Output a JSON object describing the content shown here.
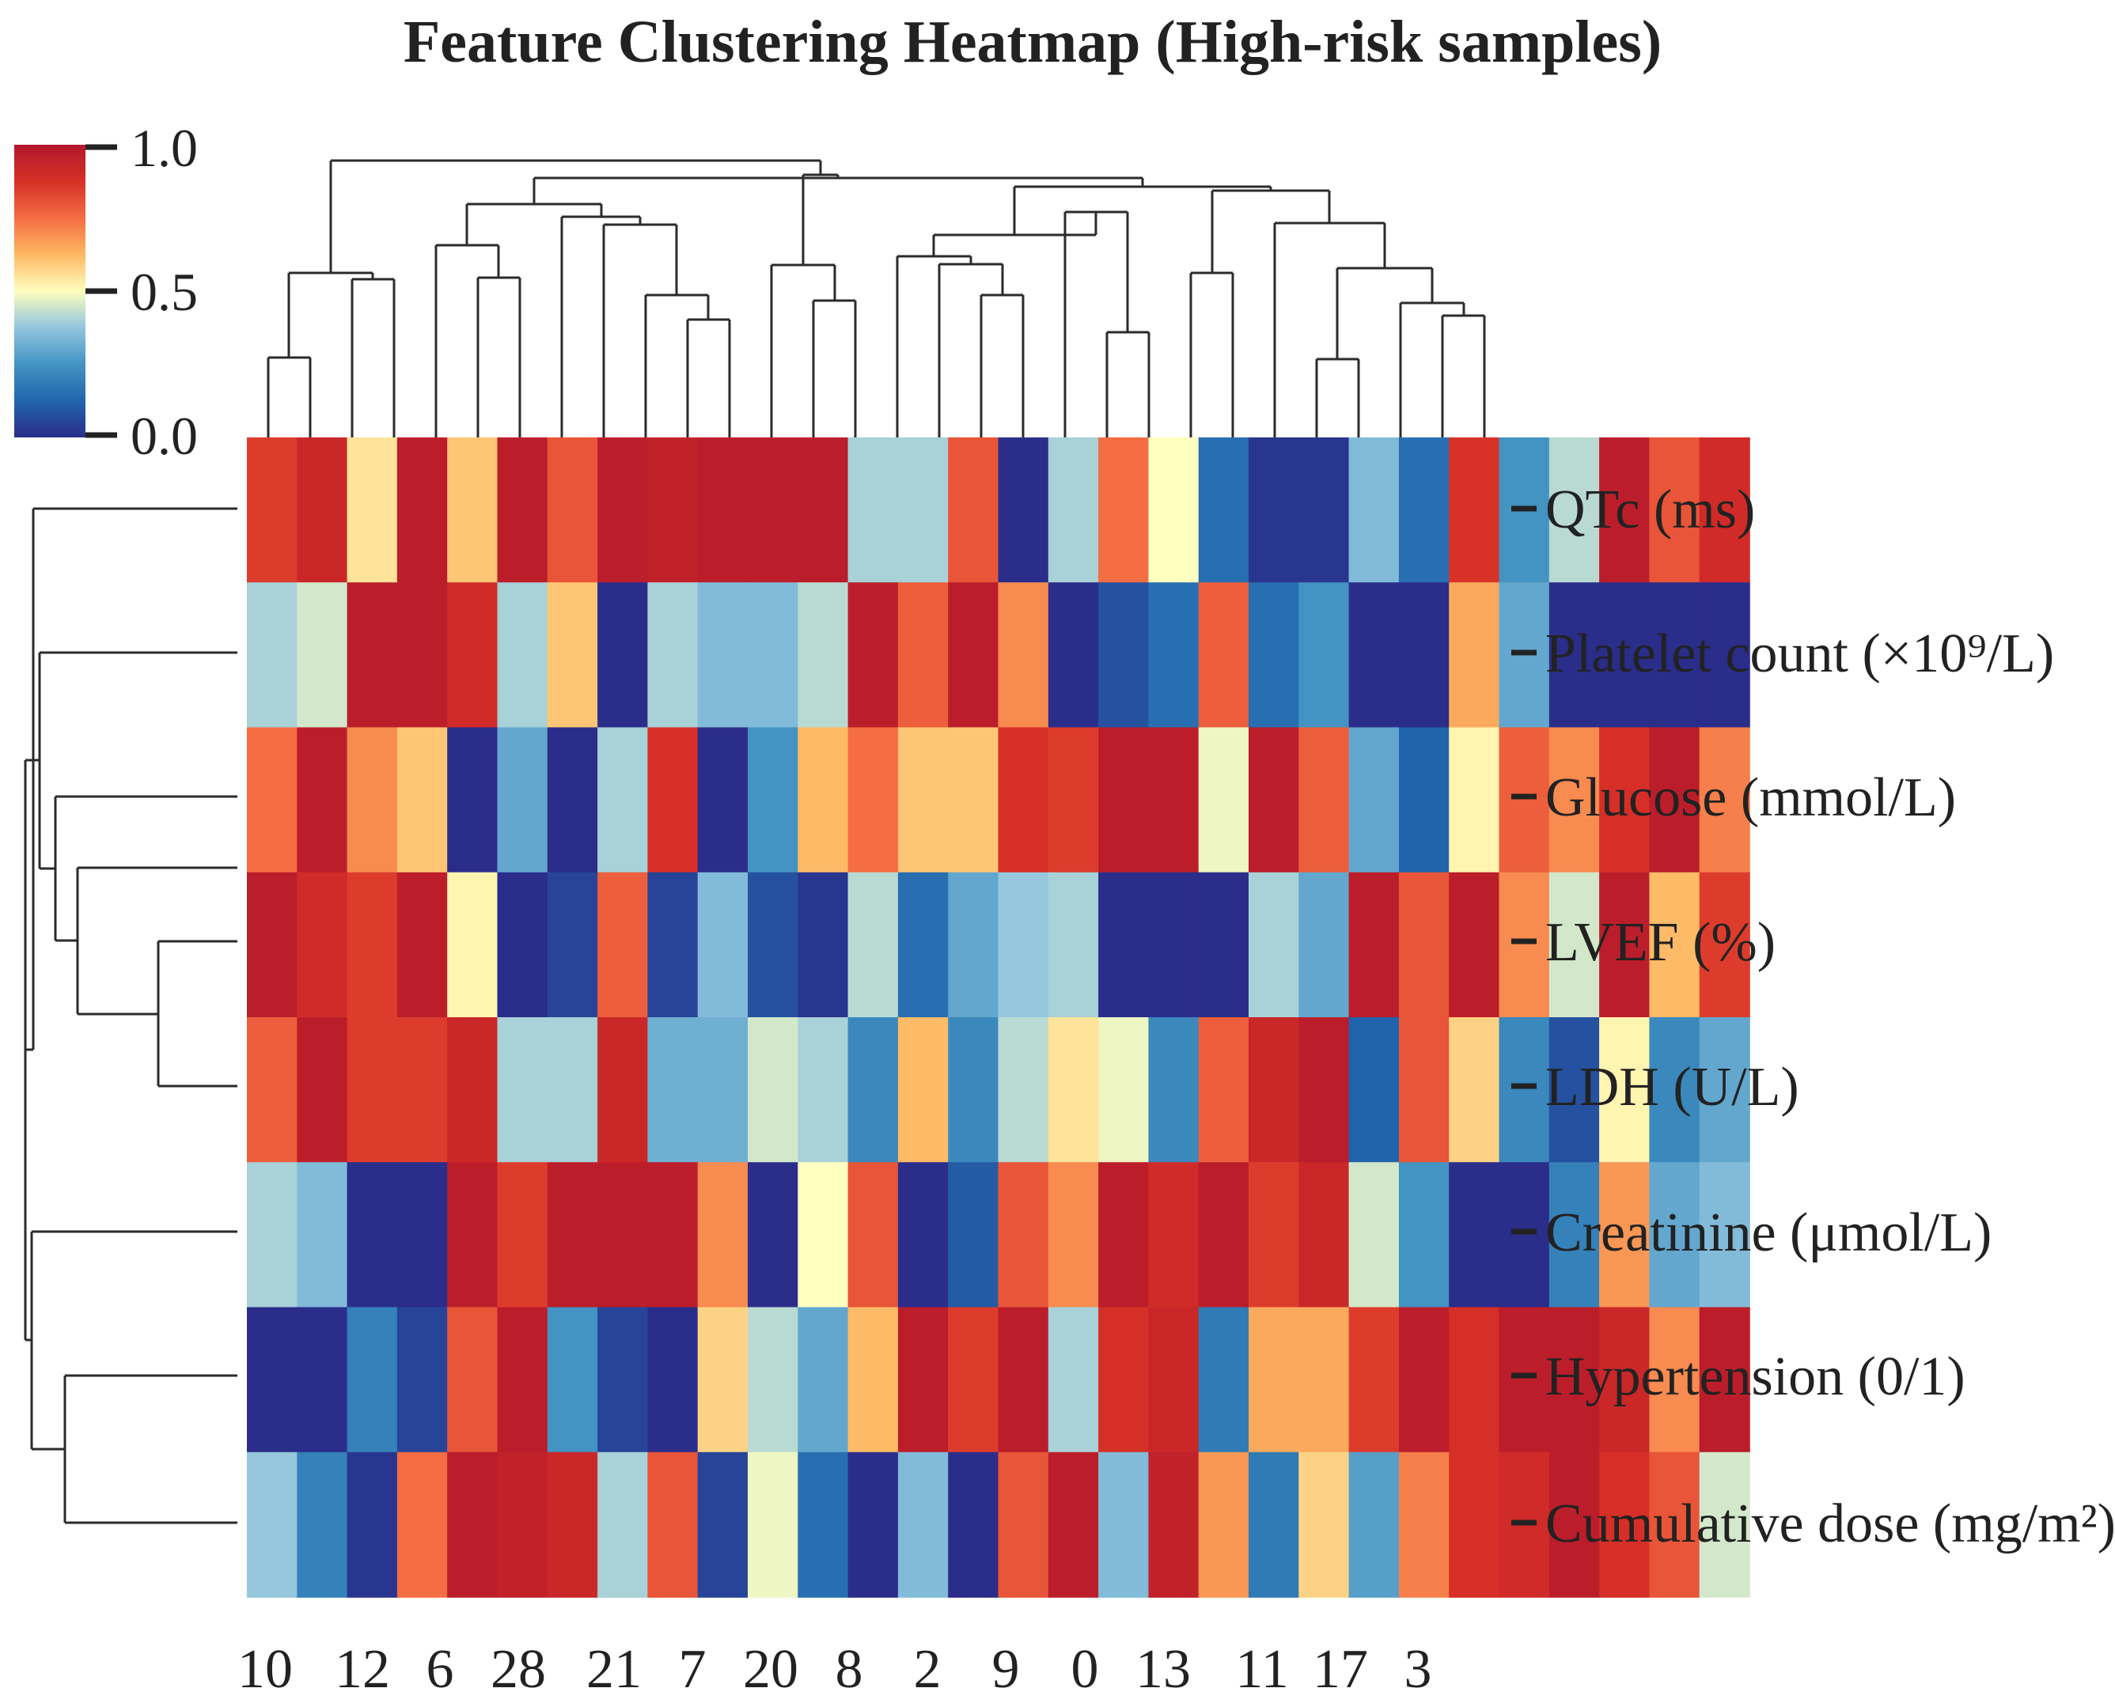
{
  "chart_data": {
    "type": "heatmap",
    "title": "Feature Clustering Heatmap (High-risk samples)",
    "rows": [
      "QTc (ms)",
      "Platelet count (×10⁹/L)",
      "Glucose (mmol/L)",
      "LVEF (%)",
      "LDH (U/L)",
      "Creatinine (μmol/L)",
      "Hypertension (0/1)",
      "Cumulative dose (mg/m²)"
    ],
    "column_labels": [
      "10",
      "12",
      "6",
      "28",
      "21",
      "7",
      "20",
      "8",
      "2",
      "9",
      "0",
      "13",
      "11",
      "17",
      "3"
    ],
    "colorbar": {
      "min": 0.0,
      "max": 1.0,
      "ticks": [
        "0.0",
        "0.5",
        "1.0"
      ],
      "colormap": "RdYlBu_r"
    },
    "values": [
      [
        0.85,
        0.92,
        0.55,
        0.97,
        0.6,
        0.97,
        0.8,
        0.97,
        0.95,
        0.97,
        0.97,
        0.97,
        0.4,
        0.4,
        0.8,
        0.0,
        0.4,
        0.75,
        0.5,
        0.15,
        0.02,
        0.02,
        0.35,
        0.15,
        0.87,
        0.25,
        0.42,
        0.97,
        0.8,
        0.9
      ],
      [
        0.4,
        0.45,
        0.97,
        0.97,
        0.9,
        0.4,
        0.6,
        0.0,
        0.4,
        0.35,
        0.35,
        0.42,
        0.97,
        0.78,
        0.97,
        0.7,
        0.0,
        0.08,
        0.15,
        0.78,
        0.15,
        0.25,
        0.0,
        0.0,
        0.65,
        0.3,
        0.0,
        0.0,
        0.0,
        0.0
      ],
      [
        0.75,
        0.97,
        0.7,
        0.6,
        0.0,
        0.3,
        0.0,
        0.4,
        0.88,
        0.0,
        0.25,
        0.62,
        0.75,
        0.6,
        0.6,
        0.88,
        0.85,
        0.97,
        0.97,
        0.48,
        0.97,
        0.78,
        0.3,
        0.12,
        0.52,
        0.78,
        0.7,
        0.88,
        0.97,
        0.72
      ],
      [
        0.97,
        0.9,
        0.85,
        0.97,
        0.52,
        0.0,
        0.05,
        0.78,
        0.05,
        0.35,
        0.08,
        0.02,
        0.42,
        0.15,
        0.3,
        0.38,
        0.4,
        0.0,
        0.0,
        0.0,
        0.4,
        0.3,
        0.97,
        0.8,
        0.97,
        0.7,
        0.45,
        0.97,
        0.62,
        0.85
      ],
      [
        0.78,
        0.97,
        0.85,
        0.85,
        0.92,
        0.4,
        0.4,
        0.92,
        0.32,
        0.32,
        0.45,
        0.4,
        0.22,
        0.62,
        0.22,
        0.42,
        0.55,
        0.48,
        0.22,
        0.78,
        0.92,
        0.97,
        0.12,
        0.8,
        0.58,
        0.22,
        0.08,
        0.52,
        0.22,
        0.3
      ],
      [
        0.4,
        0.35,
        0.0,
        0.0,
        0.97,
        0.85,
        0.97,
        0.97,
        0.97,
        0.7,
        0.0,
        0.5,
        0.8,
        0.0,
        0.1,
        0.8,
        0.7,
        0.97,
        0.9,
        0.97,
        0.85,
        0.92,
        0.45,
        0.25,
        0.0,
        0.0,
        0.2,
        0.68,
        0.3,
        0.35
      ],
      [
        0.0,
        0.0,
        0.2,
        0.05,
        0.8,
        0.97,
        0.25,
        0.05,
        0.0,
        0.58,
        0.42,
        0.3,
        0.62,
        0.97,
        0.85,
        0.97,
        0.4,
        0.88,
        0.92,
        0.18,
        0.65,
        0.65,
        0.85,
        0.97,
        0.88,
        0.97,
        0.97,
        0.92,
        0.7,
        0.97
      ],
      [
        0.38,
        0.2,
        0.02,
        0.75,
        0.97,
        0.95,
        0.92,
        0.4,
        0.8,
        0.05,
        0.48,
        0.15,
        0.0,
        0.35,
        0.0,
        0.8,
        0.97,
        0.35,
        0.95,
        0.68,
        0.18,
        0.58,
        0.28,
        0.72,
        0.88,
        0.9,
        0.97,
        0.88,
        0.8,
        0.45
      ]
    ]
  }
}
